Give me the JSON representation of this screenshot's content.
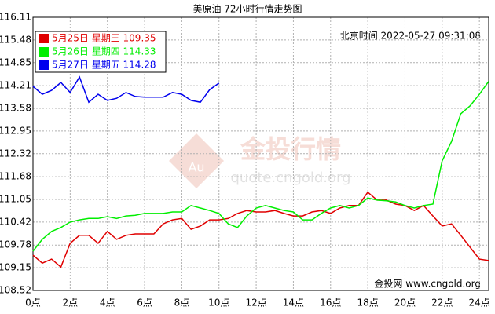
{
  "chart_data": {
    "type": "line",
    "title": "美原油 72小时行情走势图",
    "timestamp": "北京时间 2022-05-27 09:31:08",
    "watermark": {
      "logo": "Au",
      "brand": "金投行情",
      "url": "quote.cngold.org"
    },
    "source": "金投网 www.cngold.org",
    "x": [
      0,
      0.5,
      1,
      1.5,
      2,
      2.5,
      3,
      3.5,
      4,
      4.5,
      5,
      5.5,
      6,
      6.5,
      7,
      7.5,
      8,
      8.5,
      9,
      9.5,
      10,
      10.5,
      11,
      11.5,
      12,
      12.5,
      13,
      13.5,
      14,
      14.5,
      15,
      15.5,
      16,
      16.5,
      17,
      17.5,
      18,
      18.5,
      19,
      19.5,
      20,
      20.5,
      21,
      21.5,
      22,
      22.5,
      23,
      23.5,
      24,
      24.5
    ],
    "series": [
      {
        "name": "5月25日 星期三 109.35",
        "color": "#e00000",
        "values": [
          109.5,
          109.28,
          109.39,
          109.17,
          109.83,
          110.05,
          110.05,
          109.83,
          110.16,
          109.94,
          110.05,
          110.09,
          110.09,
          110.09,
          110.37,
          110.48,
          110.52,
          110.22,
          110.31,
          110.48,
          110.48,
          110.52,
          110.66,
          110.74,
          110.7,
          110.7,
          110.74,
          110.66,
          110.59,
          110.59,
          110.7,
          110.74,
          110.66,
          110.81,
          110.88,
          110.88,
          111.25,
          111.03,
          111.03,
          110.92,
          110.88,
          110.74,
          110.88,
          110.59,
          110.31,
          110.37,
          110.05,
          109.72,
          109.39,
          109.35
        ]
      },
      {
        "name": "5月26日 星期四 114.33",
        "color": "#00ee00",
        "values": [
          109.61,
          109.94,
          110.16,
          110.27,
          110.42,
          110.48,
          110.52,
          110.52,
          110.57,
          110.52,
          110.59,
          110.61,
          110.66,
          110.66,
          110.66,
          110.7,
          110.7,
          110.88,
          110.81,
          110.74,
          110.66,
          110.37,
          110.27,
          110.59,
          110.81,
          110.88,
          110.81,
          110.74,
          110.7,
          110.48,
          110.48,
          110.66,
          110.81,
          110.88,
          110.81,
          110.88,
          111.09,
          111.03,
          111.01,
          110.98,
          110.88,
          110.81,
          110.88,
          110.92,
          112.12,
          112.66,
          113.43,
          113.65,
          113.97,
          114.33
        ]
      },
      {
        "name": "5月27日 星期五 114.28",
        "color": "#0000ee",
        "values": [
          114.19,
          113.97,
          114.08,
          114.3,
          114.02,
          114.45,
          113.75,
          113.97,
          113.8,
          113.86,
          114.02,
          113.91,
          113.89,
          113.89,
          113.89,
          114.02,
          113.97,
          113.8,
          113.75,
          114.1,
          114.28,
          null,
          null,
          null,
          null,
          null,
          null,
          null,
          null,
          null,
          null,
          null,
          null,
          null,
          null,
          null,
          null,
          null,
          null,
          null,
          null,
          null,
          null,
          null,
          null,
          null,
          null,
          null,
          null,
          null
        ]
      }
    ],
    "xlim": [
      0,
      24.5
    ],
    "xticks": [
      {
        "value": 0,
        "label": "0点"
      },
      {
        "value": 2,
        "label": "2点"
      },
      {
        "value": 4,
        "label": "4点"
      },
      {
        "value": 6,
        "label": "6点"
      },
      {
        "value": 8,
        "label": "8点"
      },
      {
        "value": 10,
        "label": "10点"
      },
      {
        "value": 12,
        "label": "12点"
      },
      {
        "value": 14,
        "label": "14点"
      },
      {
        "value": 16,
        "label": "16点"
      },
      {
        "value": 18,
        "label": "18点"
      },
      {
        "value": 20,
        "label": "20点"
      },
      {
        "value": 22,
        "label": "22点"
      },
      {
        "value": 24,
        "label": "24点"
      }
    ],
    "ylim": [
      108.52,
      116.11
    ],
    "yticks": [
      108.52,
      109.15,
      109.78,
      110.42,
      111.05,
      111.68,
      112.32,
      112.95,
      113.58,
      114.21,
      114.85,
      115.48,
      116.11
    ],
    "grid": true
  }
}
